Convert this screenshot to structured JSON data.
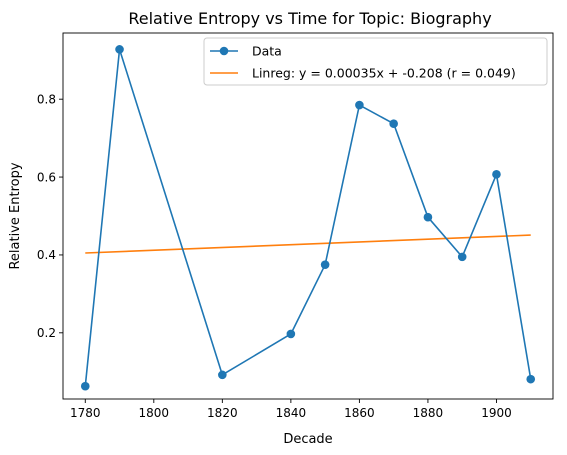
{
  "chart_data": {
    "type": "line",
    "title": "Relative Entropy vs Time for Topic: Biography",
    "xlabel": "Decade",
    "ylabel": "Relative Entropy",
    "xlim": [
      1773.5,
      1916.5
    ],
    "ylim": [
      0.03,
      0.97
    ],
    "xticks": [
      1780,
      1800,
      1820,
      1840,
      1860,
      1880,
      1900
    ],
    "yticks": [
      0.2,
      0.4,
      0.6,
      0.8
    ],
    "xtick_labels": [
      "1780",
      "1800",
      "1820",
      "1840",
      "1860",
      "1880",
      "1900"
    ],
    "ytick_labels": [
      "0.2",
      "0.4",
      "0.6",
      "0.8"
    ],
    "grid": false,
    "legend_position": "top-right",
    "series": [
      {
        "name": "Data",
        "kind": "line-with-markers",
        "color": "#1f77b4",
        "x": [
          1780,
          1790,
          1820,
          1840,
          1850,
          1860,
          1870,
          1880,
          1890,
          1900,
          1910
        ],
        "y": [
          0.063,
          0.928,
          0.092,
          0.197,
          0.375,
          0.785,
          0.737,
          0.497,
          0.395,
          0.607,
          0.081
        ]
      },
      {
        "name": "Linreg: y = 0.00035x + -0.208 (r = 0.049)",
        "kind": "line",
        "color": "#ff7f0e",
        "x": [
          1780,
          1910
        ],
        "y": [
          0.405,
          0.451
        ]
      }
    ]
  }
}
